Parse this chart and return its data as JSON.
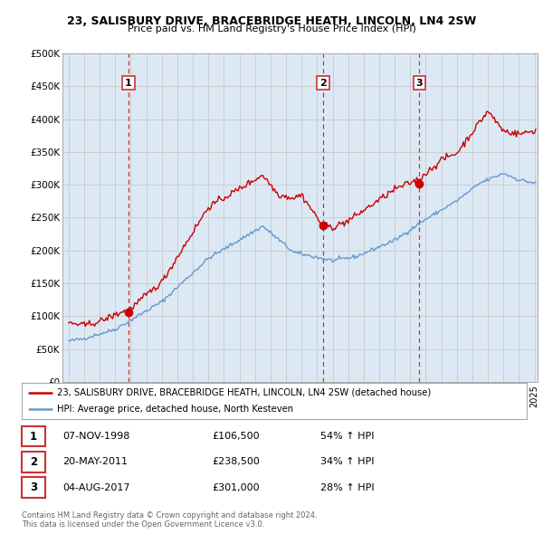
{
  "title1": "23, SALISBURY DRIVE, BRACEBRIDGE HEATH, LINCOLN, LN4 2SW",
  "title2": "Price paid vs. HM Land Registry's House Price Index (HPI)",
  "legend_line1": "23, SALISBURY DRIVE, BRACEBRIDGE HEATH, LINCOLN, LN4 2SW (detached house)",
  "legend_line2": "HPI: Average price, detached house, North Kesteven",
  "footnote1": "Contains HM Land Registry data © Crown copyright and database right 2024.",
  "footnote2": "This data is licensed under the Open Government Licence v3.0.",
  "sales": [
    {
      "num": 1,
      "date": "07-NOV-1998",
      "price": 106500,
      "hpi_pct": "54%",
      "x": 1998.85
    },
    {
      "num": 2,
      "date": "20-MAY-2011",
      "price": 238500,
      "hpi_pct": "34%",
      "x": 2011.38
    },
    {
      "num": 3,
      "date": "04-AUG-2017",
      "price": 301000,
      "hpi_pct": "28%",
      "x": 2017.58
    }
  ],
  "red_color": "#cc0000",
  "blue_color": "#6699cc",
  "vline_color": "#cc3333",
  "grid_color": "#cccccc",
  "bg_color": "#ffffff",
  "chart_bg": "#dce9f5",
  "ylim": [
    0,
    500000
  ],
  "yticks": [
    0,
    50000,
    100000,
    150000,
    200000,
    250000,
    300000,
    350000,
    400000,
    450000,
    500000
  ],
  "xlim": [
    1994.6,
    2025.2
  ]
}
